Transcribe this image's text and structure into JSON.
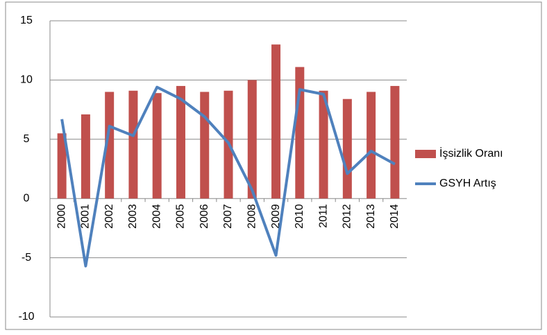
{
  "chart_data": {
    "type": "bar",
    "categories": [
      "2000",
      "2001",
      "2002",
      "2003",
      "2004",
      "2005",
      "2006",
      "2007",
      "2008",
      "2009",
      "2010",
      "2011",
      "2012",
      "2013",
      "2014"
    ],
    "series": [
      {
        "name": "İşsizlik Oranı",
        "type": "bar",
        "color": "#c0504d",
        "values": [
          5.5,
          7.1,
          9.0,
          9.1,
          8.9,
          9.5,
          9.0,
          9.1,
          10.0,
          13.0,
          11.1,
          9.1,
          8.4,
          9.0,
          9.5
        ]
      },
      {
        "name": "GSYH Artış",
        "type": "line",
        "color": "#4f81bd",
        "values": [
          6.7,
          -5.7,
          6.1,
          5.3,
          9.4,
          8.4,
          6.9,
          4.7,
          0.7,
          -4.8,
          9.2,
          8.8,
          2.1,
          4.0,
          2.9
        ]
      }
    ],
    "ylim": [
      -10,
      15
    ],
    "yticks": [
      -10,
      -5,
      0,
      5,
      10,
      15
    ],
    "grid": true,
    "legend": "right"
  }
}
